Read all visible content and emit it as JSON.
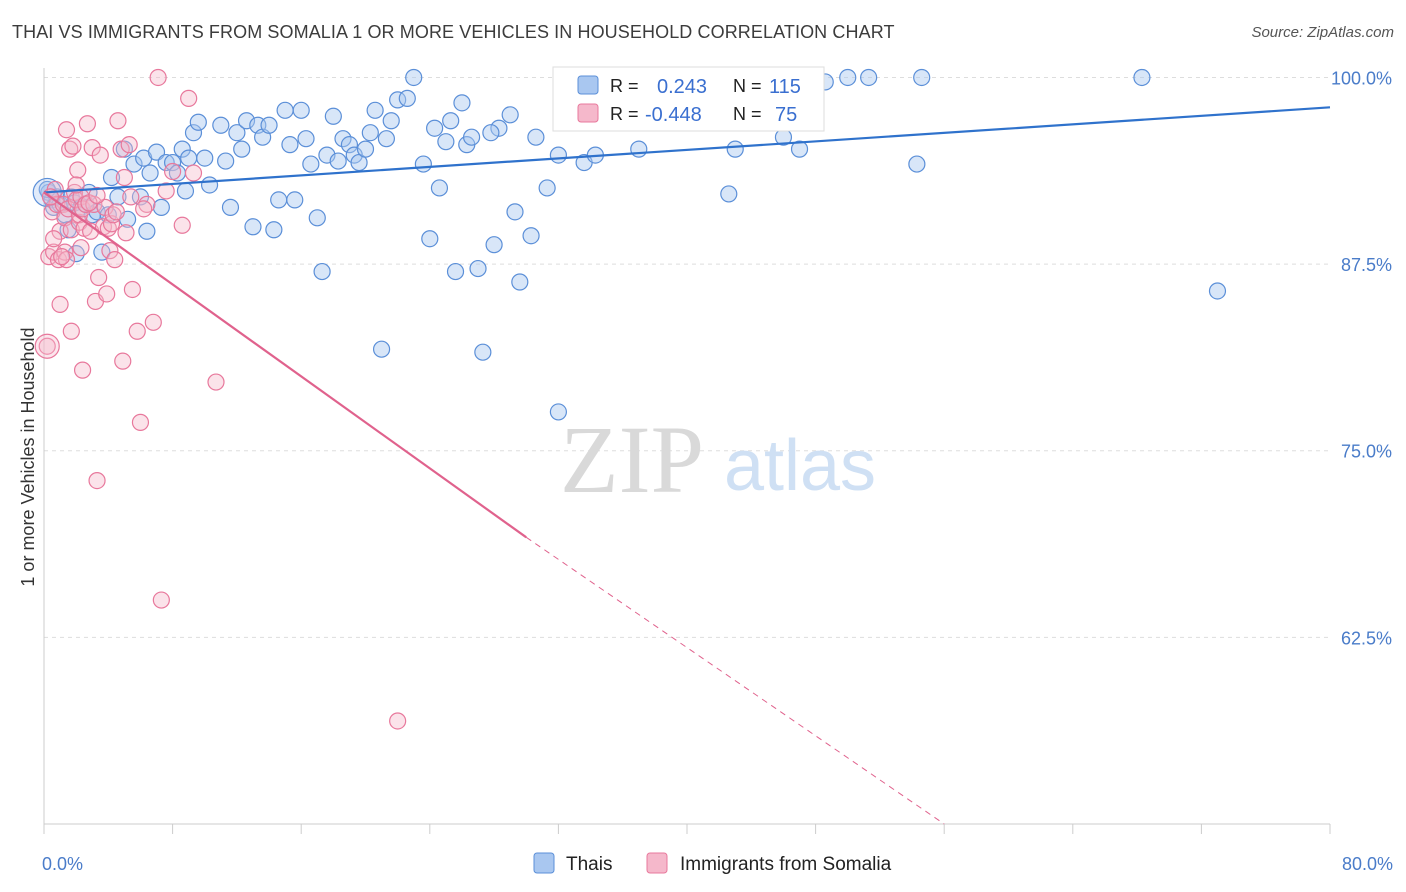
{
  "title": "THAI VS IMMIGRANTS FROM SOMALIA 1 OR MORE VEHICLES IN HOUSEHOLD CORRELATION CHART",
  "source": "Source: ZipAtlas.com",
  "watermark": {
    "zip": "ZIP",
    "atlas": "atlas"
  },
  "colors": {
    "thai_fill": "#a9c7f0",
    "thai_stroke": "#5b8fd8",
    "thai_line": "#2f72cc",
    "somalia_fill": "#f5b8cb",
    "somalia_stroke": "#e8789c",
    "somalia_line": "#e0628d",
    "axis_text": "#4a7cc9",
    "grid": "#dddddd"
  },
  "legend": {
    "rows": [
      {
        "r_label": "R =",
        "r_value": "0.243",
        "n_label": "N =",
        "n_value": "115"
      },
      {
        "r_label": "R =",
        "r_value": "-0.448",
        "n_label": "N =",
        "n_value": "75"
      }
    ]
  },
  "bottom_legend": [
    "Thais",
    "Immigrants from Somalia"
  ],
  "chart_data": {
    "type": "scatter",
    "title": "THAI VS IMMIGRANTS FROM SOMALIA 1 OR MORE VEHICLES IN HOUSEHOLD CORRELATION CHART",
    "xlabel": "",
    "ylabel": "1 or more Vehicles in Household",
    "xlim": [
      0,
      80
    ],
    "ylim": [
      50,
      100.5
    ],
    "x_tick_labels": [
      "0.0%",
      "80.0%"
    ],
    "y_ticks": [
      100.0,
      87.5,
      75.0,
      62.5
    ],
    "y_tick_labels": [
      "100.0%",
      "87.5%",
      "75.0%",
      "62.5%"
    ],
    "grid": true,
    "legend_placement": "top-center",
    "series": [
      {
        "name": "Thais",
        "r": 0.243,
        "n": 115,
        "trend": {
          "x": [
            0,
            80
          ],
          "y": [
            92.3,
            98.0
          ]
        },
        "points": [
          [
            0.3,
            92.3
          ],
          [
            0.5,
            91.8
          ],
          [
            0.6,
            91.3
          ],
          [
            0.8,
            92.0
          ],
          [
            1.0,
            91.5
          ],
          [
            1.3,
            90.8
          ],
          [
            1.5,
            89.8
          ],
          [
            1.7,
            92.0
          ],
          [
            1.9,
            91.6
          ],
          [
            2.0,
            88.2
          ],
          [
            2.3,
            91.3
          ],
          [
            2.6,
            91.5
          ],
          [
            3.0,
            90.8
          ],
          [
            3.3,
            91.0
          ],
          [
            3.6,
            88.3
          ],
          [
            4.0,
            90.8
          ],
          [
            4.2,
            93.3
          ],
          [
            4.6,
            92.0
          ],
          [
            5.0,
            95.2
          ],
          [
            5.2,
            90.5
          ],
          [
            5.6,
            94.2
          ],
          [
            6.0,
            92.0
          ],
          [
            6.2,
            94.6
          ],
          [
            6.6,
            93.6
          ],
          [
            7.0,
            95.0
          ],
          [
            7.3,
            91.3
          ],
          [
            7.6,
            94.3
          ],
          [
            8.0,
            94.3
          ],
          [
            8.3,
            93.6
          ],
          [
            8.6,
            95.2
          ],
          [
            9.0,
            94.6
          ],
          [
            9.3,
            96.3
          ],
          [
            9.6,
            97.0
          ],
          [
            10.0,
            94.6
          ],
          [
            10.3,
            92.8
          ],
          [
            11.0,
            96.8
          ],
          [
            11.3,
            94.4
          ],
          [
            11.6,
            91.3
          ],
          [
            12.0,
            96.3
          ],
          [
            12.3,
            95.2
          ],
          [
            12.6,
            97.1
          ],
          [
            13.0,
            90.0
          ],
          [
            13.3,
            96.8
          ],
          [
            13.6,
            96.0
          ],
          [
            14.0,
            96.8
          ],
          [
            14.3,
            89.8
          ],
          [
            14.6,
            91.8
          ],
          [
            15.0,
            97.8
          ],
          [
            15.3,
            95.5
          ],
          [
            15.6,
            91.8
          ],
          [
            16.0,
            97.8
          ],
          [
            16.3,
            95.9
          ],
          [
            16.6,
            94.2
          ],
          [
            17.0,
            90.6
          ],
          [
            17.3,
            87.0
          ],
          [
            17.6,
            94.8
          ],
          [
            18.0,
            97.4
          ],
          [
            18.3,
            94.4
          ],
          [
            18.6,
            95.9
          ],
          [
            19.0,
            95.5
          ],
          [
            19.3,
            94.8
          ],
          [
            19.6,
            94.3
          ],
          [
            20.0,
            95.2
          ],
          [
            20.3,
            96.3
          ],
          [
            20.6,
            97.8
          ],
          [
            21.0,
            81.8
          ],
          [
            21.3,
            95.9
          ],
          [
            21.6,
            97.1
          ],
          [
            22.0,
            98.5
          ],
          [
            22.6,
            98.6
          ],
          [
            23.0,
            100.0
          ],
          [
            23.6,
            94.2
          ],
          [
            24.0,
            89.2
          ],
          [
            24.3,
            96.6
          ],
          [
            24.6,
            92.6
          ],
          [
            25.0,
            95.7
          ],
          [
            25.3,
            97.1
          ],
          [
            25.6,
            87.0
          ],
          [
            26.0,
            98.3
          ],
          [
            26.3,
            95.5
          ],
          [
            26.6,
            96.0
          ],
          [
            27.0,
            87.2
          ],
          [
            27.3,
            81.6
          ],
          [
            28.0,
            88.8
          ],
          [
            28.3,
            96.6
          ],
          [
            29.0,
            97.5
          ],
          [
            29.3,
            91.0
          ],
          [
            29.6,
            86.3
          ],
          [
            30.3,
            89.4
          ],
          [
            30.6,
            96.0
          ],
          [
            31.3,
            92.6
          ],
          [
            32.0,
            77.6
          ],
          [
            32.0,
            94.8
          ],
          [
            33.6,
            94.3
          ],
          [
            34.3,
            94.8
          ],
          [
            36.0,
            100.0
          ],
          [
            36.3,
            97.4
          ],
          [
            37.0,
            95.2
          ],
          [
            38.0,
            99.8
          ],
          [
            42.6,
            92.2
          ],
          [
            43.0,
            95.2
          ],
          [
            46.0,
            96.0
          ],
          [
            47.0,
            95.2
          ],
          [
            48.6,
            99.7
          ],
          [
            50.0,
            100.0
          ],
          [
            51.3,
            100.0
          ],
          [
            54.3,
            94.2
          ],
          [
            54.6,
            100.0
          ],
          [
            68.3,
            100.0
          ],
          [
            73.0,
            85.7
          ],
          [
            0.2,
            92.5
          ],
          [
            2.8,
            92.3
          ],
          [
            6.4,
            89.7
          ],
          [
            8.8,
            92.4
          ],
          [
            27.8,
            96.3
          ]
        ]
      },
      {
        "name": "Immigrants from Somalia",
        "r": -0.448,
        "n": 75,
        "trend": {
          "x": [
            0,
            30
          ],
          "y": [
            92.3,
            69.2
          ]
        },
        "trend_dashed": {
          "x": [
            30,
            56
          ],
          "y": [
            69.2,
            50.0
          ]
        },
        "points": [
          [
            0.2,
            82.0
          ],
          [
            0.3,
            88.0
          ],
          [
            0.5,
            91.0
          ],
          [
            0.6,
            88.3
          ],
          [
            0.7,
            92.5
          ],
          [
            0.8,
            91.5
          ],
          [
            0.9,
            87.8
          ],
          [
            1.0,
            84.8
          ],
          [
            1.0,
            89.7
          ],
          [
            1.2,
            91.5
          ],
          [
            1.3,
            90.6
          ],
          [
            1.3,
            88.3
          ],
          [
            1.4,
            87.8
          ],
          [
            1.5,
            91.2
          ],
          [
            1.6,
            95.2
          ],
          [
            1.7,
            89.8
          ],
          [
            1.8,
            95.4
          ],
          [
            1.9,
            92.3
          ],
          [
            2.0,
            91.8
          ],
          [
            2.1,
            93.8
          ],
          [
            2.2,
            90.3
          ],
          [
            2.2,
            90.8
          ],
          [
            2.3,
            92.0
          ],
          [
            2.4,
            91.2
          ],
          [
            2.4,
            80.4
          ],
          [
            2.5,
            89.9
          ],
          [
            2.6,
            91.5
          ],
          [
            2.7,
            96.9
          ],
          [
            2.9,
            89.7
          ],
          [
            3.0,
            95.3
          ],
          [
            3.1,
            91.5
          ],
          [
            3.2,
            85.0
          ],
          [
            3.3,
            73.0
          ],
          [
            3.4,
            86.6
          ],
          [
            3.5,
            94.8
          ],
          [
            3.7,
            90.0
          ],
          [
            3.8,
            91.3
          ],
          [
            4.0,
            89.9
          ],
          [
            4.1,
            88.4
          ],
          [
            4.2,
            90.2
          ],
          [
            4.3,
            90.8
          ],
          [
            4.4,
            87.8
          ],
          [
            4.6,
            97.1
          ],
          [
            4.8,
            95.2
          ],
          [
            4.9,
            81.0
          ],
          [
            5.0,
            93.3
          ],
          [
            5.3,
            95.5
          ],
          [
            5.4,
            92.0
          ],
          [
            5.5,
            85.8
          ],
          [
            5.8,
            83.0
          ],
          [
            6.0,
            76.9
          ],
          [
            6.4,
            91.5
          ],
          [
            6.8,
            83.6
          ],
          [
            7.1,
            100.0
          ],
          [
            7.3,
            65.0
          ],
          [
            8.0,
            93.7
          ],
          [
            8.6,
            90.1
          ],
          [
            9.0,
            98.6
          ],
          [
            9.3,
            93.6
          ],
          [
            10.7,
            79.6
          ],
          [
            22.0,
            56.9
          ],
          [
            0.4,
            92.0
          ],
          [
            0.6,
            89.2
          ],
          [
            1.1,
            88.0
          ],
          [
            1.7,
            83.0
          ],
          [
            2.0,
            92.8
          ],
          [
            2.8,
            91.6
          ],
          [
            3.3,
            92.1
          ],
          [
            4.5,
            91.0
          ],
          [
            5.1,
            89.6
          ],
          [
            6.2,
            91.2
          ],
          [
            7.6,
            92.4
          ],
          [
            1.4,
            96.5
          ],
          [
            3.9,
            85.5
          ],
          [
            2.3,
            88.6
          ]
        ]
      }
    ]
  }
}
